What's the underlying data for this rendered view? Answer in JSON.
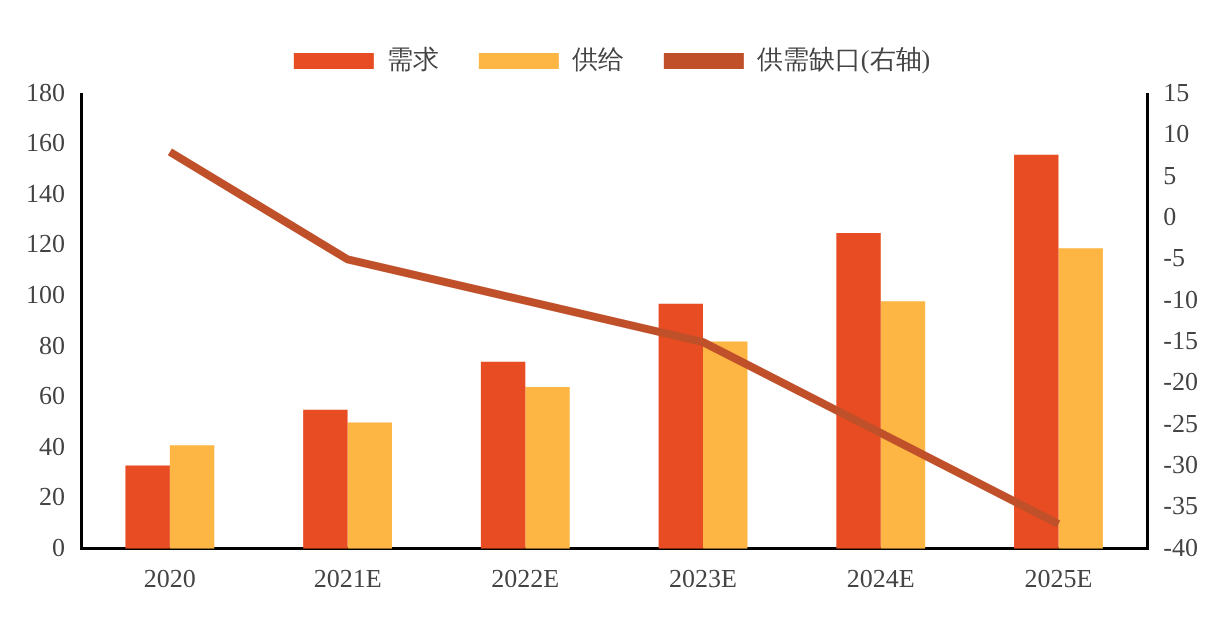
{
  "chart_data": {
    "type": "bar",
    "categories": [
      "2020",
      "2021E",
      "2022E",
      "2023E",
      "2024E",
      "2025E"
    ],
    "series": [
      {
        "name": "需求",
        "color": "#e84c22",
        "values": [
          33,
          55,
          74,
          97,
          125,
          156
        ]
      },
      {
        "name": "供给",
        "color": "#fdb643",
        "values": [
          41,
          50,
          64,
          82,
          98,
          119
        ]
      },
      {
        "name": "供需缺口(右轴)",
        "type": "line",
        "axis": "y2",
        "color": "#c0502a",
        "values": [
          8,
          -5,
          -10,
          -15,
          -26,
          -37
        ]
      }
    ],
    "ylim": [
      0,
      180
    ],
    "yticks": [
      0,
      20,
      40,
      60,
      80,
      100,
      120,
      140,
      160,
      180
    ],
    "y2lim": [
      -40,
      15
    ],
    "y2ticks": [
      -40,
      -35,
      -30,
      -25,
      -20,
      -15,
      -10,
      -5,
      0,
      5,
      10,
      15
    ],
    "grid": false,
    "legend": "top",
    "marker": "none",
    "line_style": "solid"
  }
}
